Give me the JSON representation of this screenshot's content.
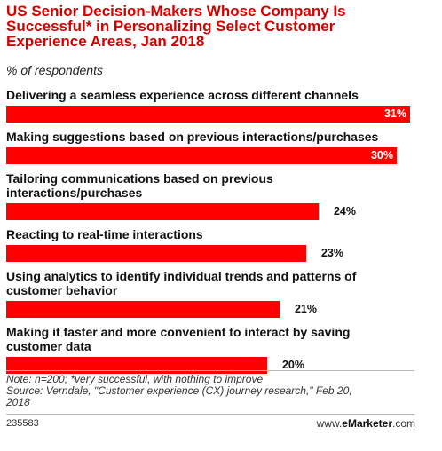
{
  "header": {
    "title_line1": "US Senior Decision-Makers Whose Company Is",
    "title_line2": "Successful* in Personalizing Select Customer",
    "title_line3": "Experience Areas, Jan 2018",
    "subtitle": "% of respondents"
  },
  "chart_data": {
    "type": "bar",
    "orientation": "horizontal",
    "title": "US Senior Decision-Makers Whose Company Is Successful* in Personalizing Select Customer Experience Areas, Jan 2018",
    "subtitle": "% of respondents",
    "categories": [
      [
        "Delivering a seamless experience across different channels"
      ],
      [
        "Making suggestions based on previous interactions/purchases"
      ],
      [
        "Tailoring communications based on previous",
        "interactions/purchases"
      ],
      [
        "Reacting to real-time interactions"
      ],
      [
        "Using analytics to identify individual trends and patterns of",
        "customer behavior"
      ],
      [
        "Making it faster and more convenient to interact by saving",
        "customer data"
      ]
    ],
    "values": [
      31,
      30,
      24,
      23,
      21,
      20
    ],
    "value_labels": [
      "31%",
      "30%",
      "24%",
      "23%",
      "21%",
      "20%"
    ],
    "bar_color": "#ff0000",
    "xlim": [
      0,
      31
    ],
    "grid": false,
    "legend": "none"
  },
  "footer": {
    "note": "Note: n=200; *very successful, with nothing to improve",
    "source_line1": "Source: Verndale, \"Customer experience (CX) journey research,\" Feb 20,",
    "source_line2": "2018",
    "chart_id": "235583",
    "brand_prefix": "www.",
    "brand_name": "eMarketer",
    "brand_suffix": ".com"
  }
}
